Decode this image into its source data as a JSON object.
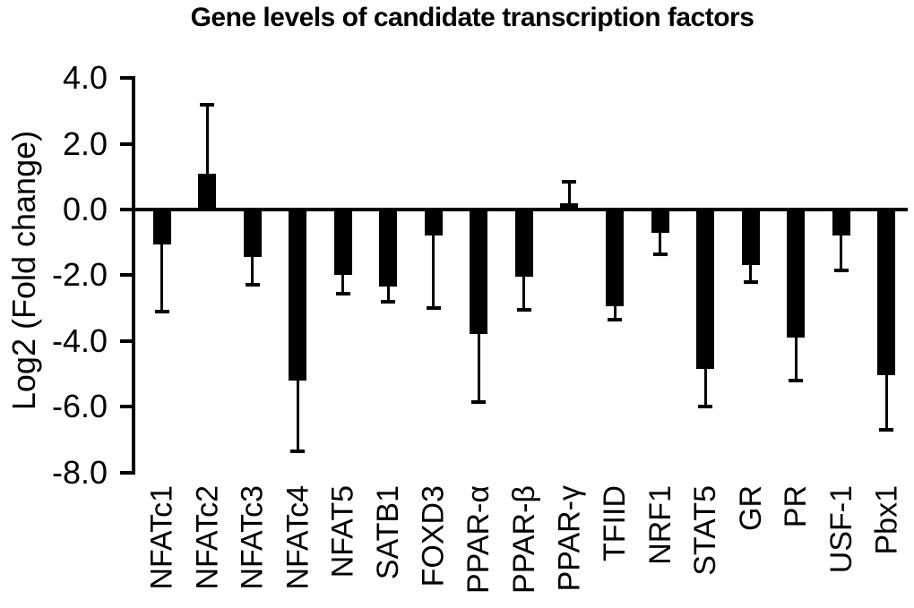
{
  "figure": {
    "background_color": "#ffffff"
  },
  "chart_data": {
    "type": "bar",
    "title": "Gene levels of candidate transcription factors",
    "ylabel": "Log2 (Fold change)",
    "xlabel": "",
    "categories": [
      "NFATc1",
      "NFATc2",
      "NFATc3",
      "NFATc4",
      "NFAT5",
      "SATB1",
      "FOXD3",
      "PPAR-α",
      "PPAR-β",
      "PPAR-γ",
      "TFIID",
      "NRF1",
      "STAT5",
      "GR",
      "PR",
      "USF-1",
      "Pbx1"
    ],
    "values": [
      -1.05,
      1.1,
      -1.45,
      -5.2,
      -2.0,
      -2.35,
      -0.8,
      -3.8,
      -2.05,
      0.2,
      -2.95,
      -0.7,
      -4.85,
      -1.7,
      -3.9,
      -0.8,
      -5.05
    ],
    "errors": [
      2.05,
      2.1,
      0.85,
      2.15,
      0.55,
      0.45,
      2.2,
      2.05,
      1.0,
      0.65,
      0.4,
      0.65,
      1.15,
      0.5,
      1.3,
      1.05,
      1.65
    ],
    "error_direction": "away-from-zero",
    "ylim": [
      -8.0,
      4.0
    ],
    "yticks": [
      4.0,
      2.0,
      0.0,
      -2.0,
      -4.0,
      -6.0,
      -8.0
    ],
    "ytick_labels": [
      "4.0",
      "2.0",
      "0.0",
      "-2.0",
      "-4.0",
      "-6.0",
      "-8.0"
    ],
    "grid": false,
    "legend": null,
    "bar_color": "#000000",
    "axis_color": "#000000",
    "x_labels_rotation_deg": -90
  }
}
